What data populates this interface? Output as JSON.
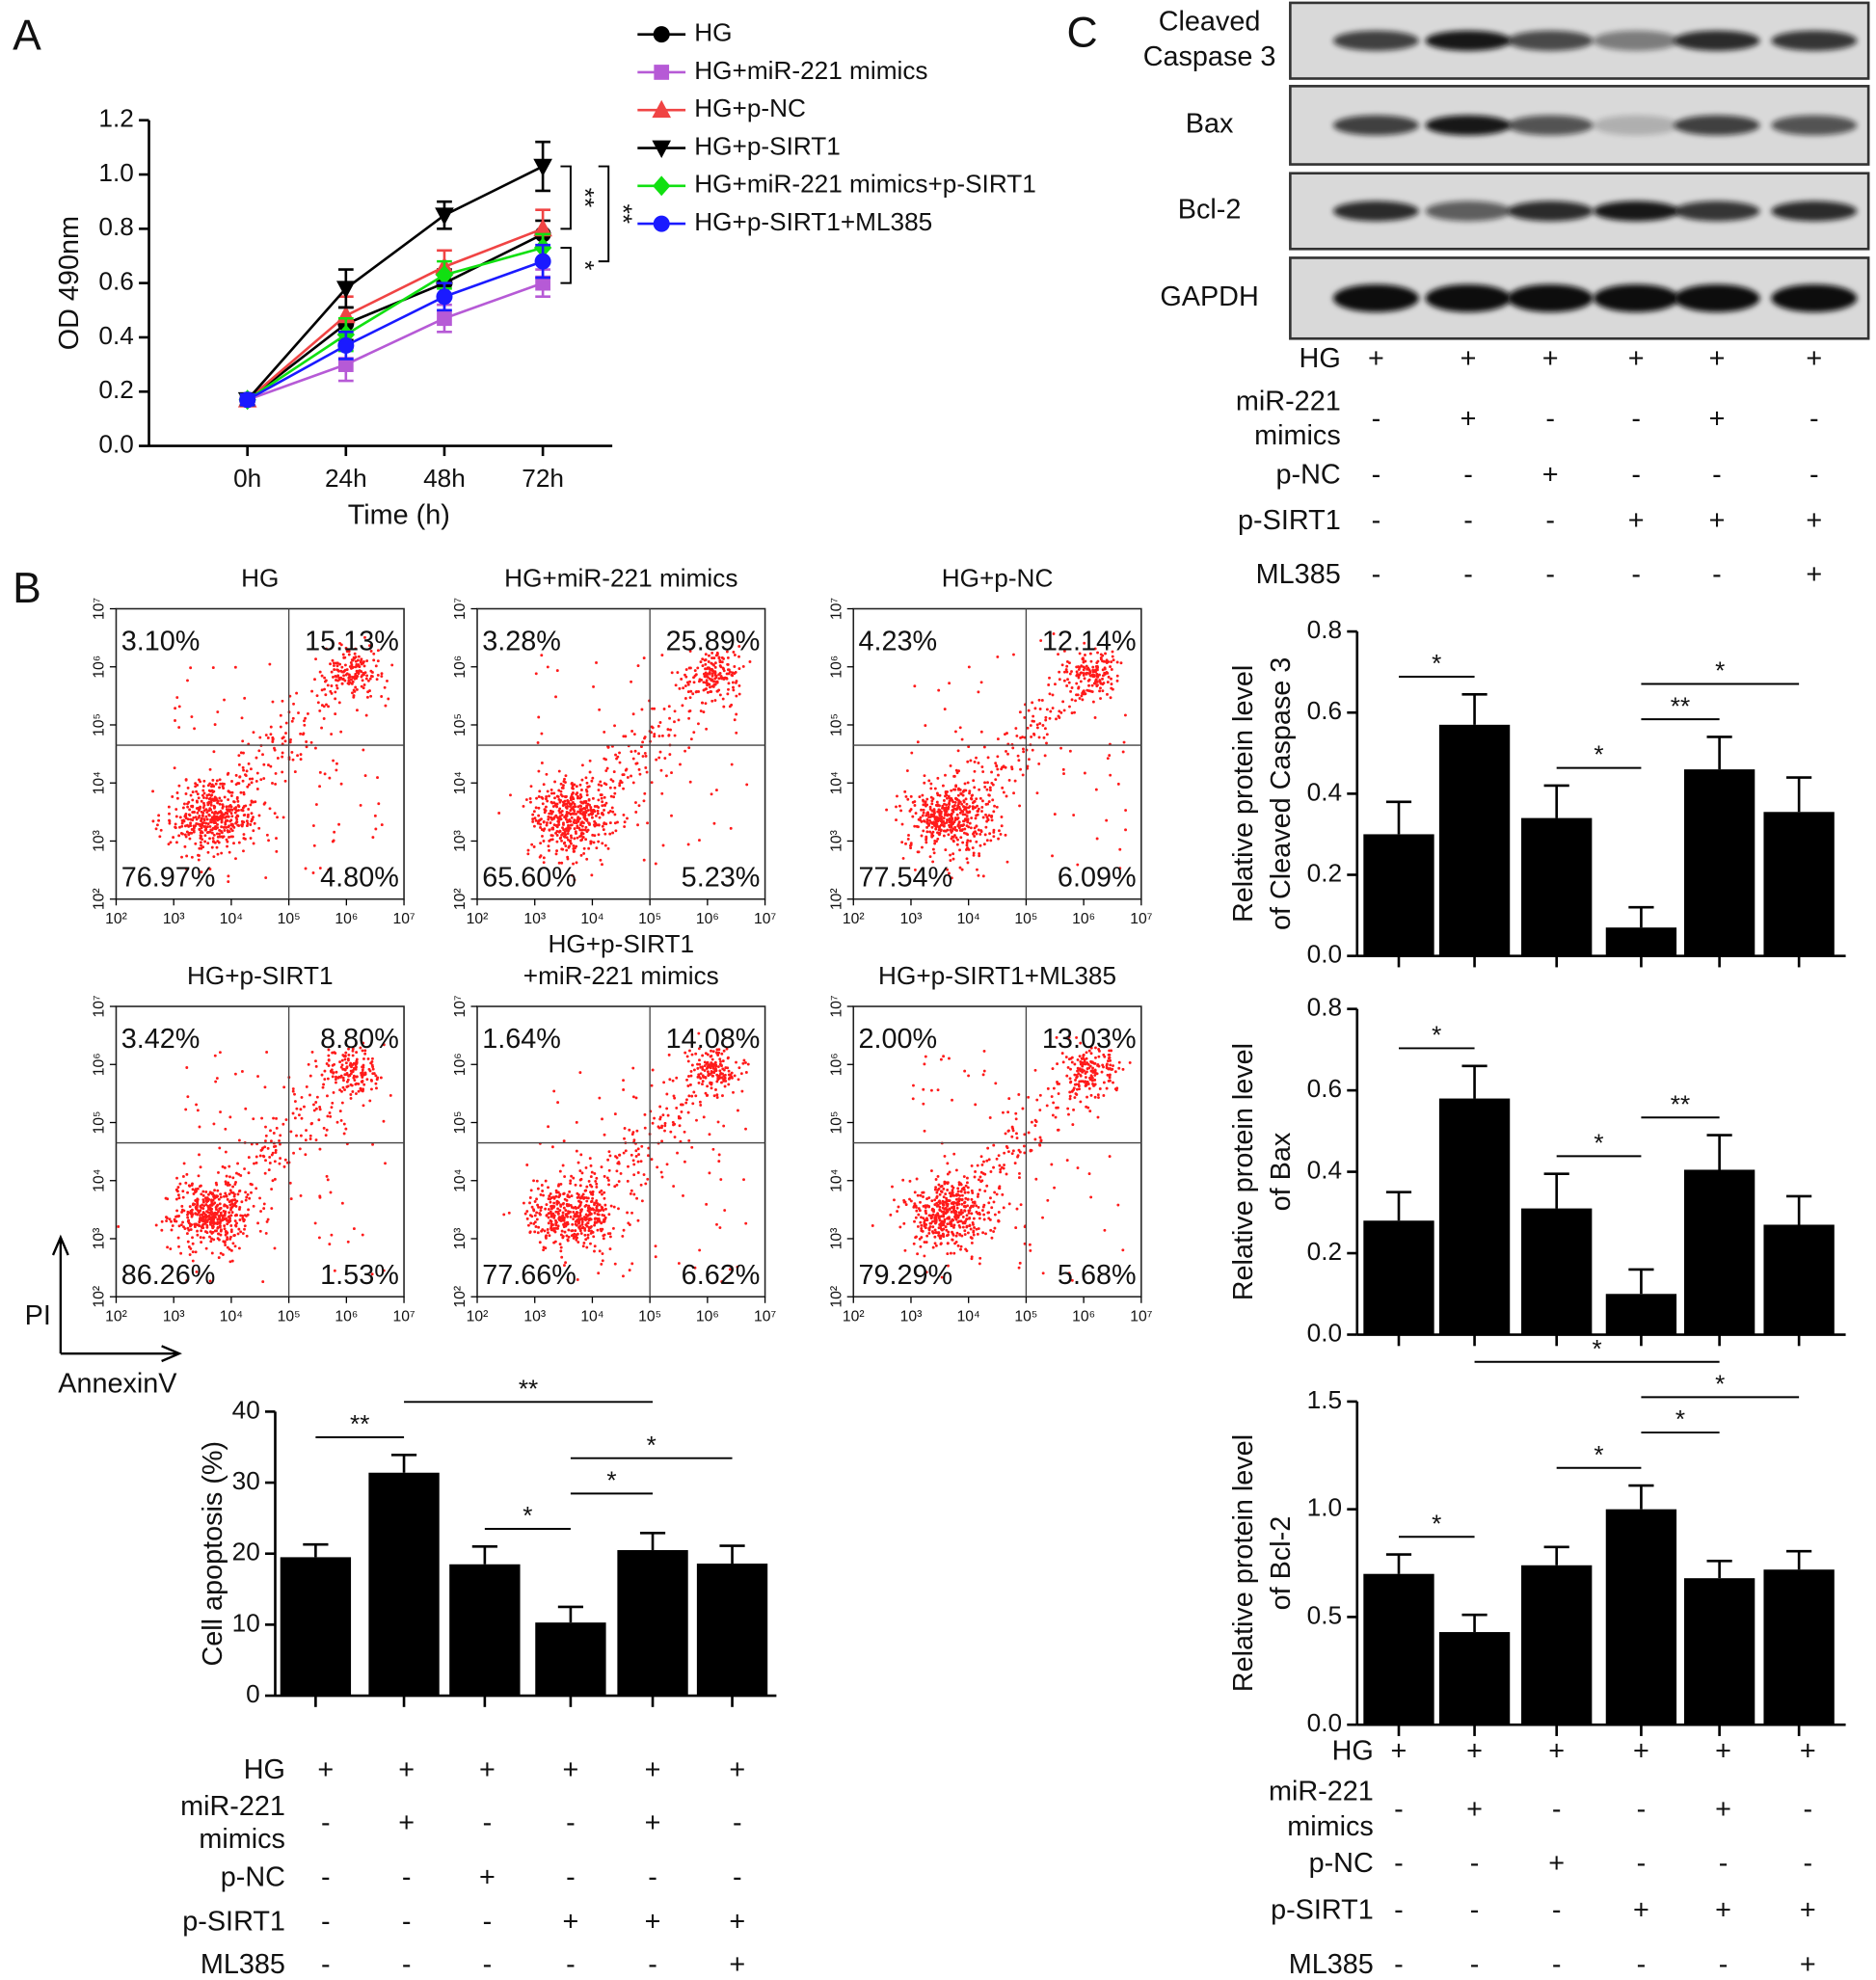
{
  "panel_labels": [
    "A",
    "B",
    "C"
  ],
  "chart_data": [
    {
      "type": "line",
      "x_label": "Time (h)",
      "y_label": "OD 490nm",
      "categories": [
        "0h",
        "24h",
        "48h",
        "72h"
      ],
      "ylim": [
        0,
        1.2
      ],
      "yticks": [
        {
          "value": 0,
          "label": "0.0"
        },
        {
          "value": 0.2,
          "label": "0.2"
        },
        {
          "value": 0.4,
          "label": "0.4"
        },
        {
          "value": 0.6,
          "label": "0.6"
        },
        {
          "value": 0.8,
          "label": "0.8"
        },
        {
          "value": 1,
          "label": "1.0"
        },
        {
          "value": 1.2,
          "label": "1.2"
        }
      ],
      "series": [
        {
          "name": "HG",
          "color": "#000000",
          "marker": "circle",
          "values": [
            0.17,
            0.45,
            0.6,
            0.78
          ],
          "errors": [
            0.02,
            0.06,
            0.05,
            0.05
          ]
        },
        {
          "name": "HG+miR-221 mimics",
          "color": "#b65ad6",
          "marker": "square",
          "values": [
            0.17,
            0.3,
            0.47,
            0.6
          ],
          "errors": [
            0.02,
            0.06,
            0.05,
            0.05
          ]
        },
        {
          "name": "HG+p-NC",
          "color": "#f04444",
          "marker": "triangle",
          "values": [
            0.17,
            0.48,
            0.66,
            0.8
          ],
          "errors": [
            0.02,
            0.07,
            0.06,
            0.07
          ]
        },
        {
          "name": "HG+p-SIRT1",
          "color": "#000000",
          "marker": "triangle-down",
          "values": [
            0.17,
            0.58,
            0.85,
            1.03
          ],
          "errors": [
            0.02,
            0.07,
            0.05,
            0.09
          ]
        },
        {
          "name": "HG+miR-221 mimics+p-SIRT1",
          "color": "#11e011",
          "marker": "diamond",
          "values": [
            0.17,
            0.41,
            0.63,
            0.73
          ],
          "errors": [
            0.02,
            0.06,
            0.05,
            0.05
          ]
        },
        {
          "name": "HG+p-SIRT1+ML385",
          "color": "#1a1aff",
          "marker": "circle",
          "values": [
            0.17,
            0.37,
            0.55,
            0.68
          ],
          "errors": [
            0.02,
            0.05,
            0.05,
            0.06
          ]
        }
      ],
      "comparisons": [
        {
          "series": [
            3,
            2
          ],
          "label": "**"
        },
        {
          "series": [
            3,
            5
          ],
          "label": "**"
        },
        {
          "series": [
            4,
            1
          ],
          "label": "*"
        }
      ]
    },
    {
      "type": "flow",
      "title": [
        "HG"
      ],
      "quadrants": [
        "3.10%",
        "15.13%",
        "76.97%",
        "4.80%"
      ],
      "log": true,
      "xlim": [
        100,
        10000000
      ],
      "ylim": [
        100,
        10000000
      ],
      "xticks": [
        {
          "value": 100,
          "label": "10²"
        },
        {
          "value": 1000,
          "label": "10³"
        },
        {
          "value": 10000,
          "label": "10⁴"
        },
        {
          "value": 100000,
          "label": "10⁵"
        },
        {
          "value": 1000000,
          "label": "10⁶"
        },
        {
          "value": 10000000,
          "label": "10⁷"
        }
      ],
      "yticks": [
        {
          "value": 100,
          "label": "10²"
        },
        {
          "value": 1000,
          "label": "10³"
        },
        {
          "value": 10000,
          "label": "10⁴"
        },
        {
          "value": 100000,
          "label": "10⁵"
        },
        {
          "value": 1000000,
          "label": "10⁶"
        },
        {
          "value": 10000000,
          "label": "10⁷"
        }
      ]
    },
    {
      "type": "flow",
      "title": [
        "HG+miR-221 mimics"
      ],
      "quadrants": [
        "3.28%",
        "25.89%",
        "65.60%",
        "5.23%"
      ],
      "log": true,
      "xlim": [
        100,
        10000000
      ],
      "ylim": [
        100,
        10000000
      ],
      "xticks": [
        {
          "value": 100,
          "label": "10²"
        },
        {
          "value": 1000,
          "label": "10³"
        },
        {
          "value": 10000,
          "label": "10⁴"
        },
        {
          "value": 100000,
          "label": "10⁵"
        },
        {
          "value": 1000000,
          "label": "10⁶"
        },
        {
          "value": 10000000,
          "label": "10⁷"
        }
      ],
      "yticks": [
        {
          "value": 100,
          "label": "10²"
        },
        {
          "value": 1000,
          "label": "10³"
        },
        {
          "value": 10000,
          "label": "10⁴"
        },
        {
          "value": 100000,
          "label": "10⁵"
        },
        {
          "value": 1000000,
          "label": "10⁶"
        },
        {
          "value": 10000000,
          "label": "10⁷"
        }
      ]
    },
    {
      "type": "flow",
      "title": [
        "HG+p-NC"
      ],
      "quadrants": [
        "4.23%",
        "12.14%",
        "77.54%",
        "6.09%"
      ],
      "log": true,
      "xlim": [
        100,
        10000000
      ],
      "ylim": [
        100,
        10000000
      ],
      "xticks": [
        {
          "value": 100,
          "label": "10²"
        },
        {
          "value": 1000,
          "label": "10³"
        },
        {
          "value": 10000,
          "label": "10⁴"
        },
        {
          "value": 100000,
          "label": "10⁵"
        },
        {
          "value": 1000000,
          "label": "10⁶"
        },
        {
          "value": 10000000,
          "label": "10⁷"
        }
      ],
      "yticks": [
        {
          "value": 100,
          "label": "10²"
        },
        {
          "value": 1000,
          "label": "10³"
        },
        {
          "value": 10000,
          "label": "10⁴"
        },
        {
          "value": 100000,
          "label": "10⁵"
        },
        {
          "value": 1000000,
          "label": "10⁶"
        },
        {
          "value": 10000000,
          "label": "10⁷"
        }
      ]
    },
    {
      "type": "flow",
      "title": [
        "HG+p-SIRT1"
      ],
      "quadrants": [
        "3.42%",
        "8.80%",
        "86.26%",
        "1.53%"
      ],
      "log": true,
      "xlim": [
        100,
        10000000
      ],
      "ylim": [
        100,
        10000000
      ],
      "xticks": [
        {
          "value": 100,
          "label": "10²"
        },
        {
          "value": 1000,
          "label": "10³"
        },
        {
          "value": 10000,
          "label": "10⁴"
        },
        {
          "value": 100000,
          "label": "10⁵"
        },
        {
          "value": 1000000,
          "label": "10⁶"
        },
        {
          "value": 10000000,
          "label": "10⁷"
        }
      ],
      "yticks": [
        {
          "value": 100,
          "label": "10²"
        },
        {
          "value": 1000,
          "label": "10³"
        },
        {
          "value": 10000,
          "label": "10⁴"
        },
        {
          "value": 100000,
          "label": "10⁵"
        },
        {
          "value": 1000000,
          "label": "10⁶"
        },
        {
          "value": 10000000,
          "label": "10⁷"
        }
      ]
    },
    {
      "type": "flow",
      "title": [
        "HG+p-SIRT1",
        "+miR-221 mimics"
      ],
      "quadrants": [
        "1.64%",
        "14.08%",
        "77.66%",
        "6.62%"
      ],
      "log": true,
      "xlim": [
        100,
        10000000
      ],
      "ylim": [
        100,
        10000000
      ],
      "xticks": [
        {
          "value": 100,
          "label": "10²"
        },
        {
          "value": 1000,
          "label": "10³"
        },
        {
          "value": 10000,
          "label": "10⁴"
        },
        {
          "value": 100000,
          "label": "10⁵"
        },
        {
          "value": 1000000,
          "label": "10⁶"
        },
        {
          "value": 10000000,
          "label": "10⁷"
        }
      ],
      "yticks": [
        {
          "value": 100,
          "label": "10²"
        },
        {
          "value": 1000,
          "label": "10³"
        },
        {
          "value": 10000,
          "label": "10⁴"
        },
        {
          "value": 100000,
          "label": "10⁵"
        },
        {
          "value": 1000000,
          "label": "10⁶"
        },
        {
          "value": 10000000,
          "label": "10⁷"
        }
      ]
    },
    {
      "type": "flow",
      "title": [
        "HG+p-SIRT1+ML385"
      ],
      "quadrants": [
        "2.00%",
        "13.03%",
        "79.29%",
        "5.68%"
      ],
      "log": true,
      "xlim": [
        100,
        10000000
      ],
      "ylim": [
        100,
        10000000
      ],
      "xticks": [
        {
          "value": 100,
          "label": "10²"
        },
        {
          "value": 1000,
          "label": "10³"
        },
        {
          "value": 10000,
          "label": "10⁴"
        },
        {
          "value": 100000,
          "label": "10⁵"
        },
        {
          "value": 1000000,
          "label": "10⁶"
        },
        {
          "value": 10000000,
          "label": "10⁷"
        }
      ],
      "yticks": [
        {
          "value": 100,
          "label": "10²"
        },
        {
          "value": 1000,
          "label": "10³"
        },
        {
          "value": 10000,
          "label": "10⁴"
        },
        {
          "value": 100000,
          "label": "10⁵"
        },
        {
          "value": 1000000,
          "label": "10⁶"
        },
        {
          "value": 10000000,
          "label": "10⁷"
        }
      ]
    },
    {
      "type": "bar",
      "y_label": [
        "Cell apoptosis (%)"
      ],
      "color": "#000000",
      "values": [
        19.5,
        31.4,
        18.5,
        10.3,
        20.5,
        18.6
      ],
      "errors": [
        1.8,
        2.5,
        2.5,
        2.2,
        2.4,
        2.5
      ],
      "ylim": [
        0,
        40
      ],
      "yticks": [
        0,
        10,
        20,
        30,
        40
      ],
      "comparisons": [
        {
          "bars": [
            0,
            1
          ],
          "label": "**"
        },
        {
          "bars": [
            2,
            3
          ],
          "label": "*"
        },
        {
          "bars": [
            3,
            4
          ],
          "label": "*"
        },
        {
          "bars": [
            3,
            5
          ],
          "label": "*"
        },
        {
          "bars": [
            1,
            4
          ],
          "label": "**"
        }
      ]
    },
    {
      "type": "bar",
      "y_label": [
        "Relative protein level",
        "of Cleaved Caspase 3"
      ],
      "color": "#000000",
      "values": [
        0.3,
        0.57,
        0.34,
        0.07,
        0.46,
        0.355
      ],
      "errors": [
        0.08,
        0.075,
        0.08,
        0.05,
        0.08,
        0.085
      ],
      "ylim": [
        0,
        0.8
      ],
      "yticks": [
        {
          "value": 0,
          "label": "0.0"
        },
        {
          "value": 0.2,
          "label": "0.2"
        },
        {
          "value": 0.4,
          "label": "0.4"
        },
        {
          "value": 0.6,
          "label": "0.6"
        },
        {
          "value": 0.8,
          "label": "0.8"
        }
      ],
      "comparisons": [
        {
          "bars": [
            0,
            1
          ],
          "label": "*"
        },
        {
          "bars": [
            2,
            3
          ],
          "label": "*"
        },
        {
          "bars": [
            3,
            4
          ],
          "label": "**"
        },
        {
          "bars": [
            3,
            5
          ],
          "label": "*"
        }
      ]
    },
    {
      "type": "bar",
      "y_label": [
        "Relative protein level",
        "of Bax"
      ],
      "color": "#000000",
      "values": [
        0.28,
        0.58,
        0.31,
        0.1,
        0.405,
        0.27
      ],
      "errors": [
        0.07,
        0.08,
        0.085,
        0.06,
        0.085,
        0.07
      ],
      "ylim": [
        0,
        0.8
      ],
      "yticks": [
        {
          "value": 0,
          "label": "0.0"
        },
        {
          "value": 0.2,
          "label": "0.2"
        },
        {
          "value": 0.4,
          "label": "0.4"
        },
        {
          "value": 0.6,
          "label": "0.6"
        },
        {
          "value": 0.8,
          "label": "0.8"
        }
      ],
      "comparisons": [
        {
          "bars": [
            0,
            1
          ],
          "label": "*"
        },
        {
          "bars": [
            2,
            3
          ],
          "label": "*"
        },
        {
          "bars": [
            3,
            4
          ],
          "label": "**"
        }
      ]
    },
    {
      "type": "bar",
      "y_label": [
        "Relative protein level",
        "of Bcl-2"
      ],
      "color": "#000000",
      "values": [
        0.7,
        0.43,
        0.74,
        1.0,
        0.68,
        0.72
      ],
      "errors": [
        0.09,
        0.08,
        0.085,
        0.11,
        0.08,
        0.085
      ],
      "ylim": [
        0,
        1.5
      ],
      "yticks": [
        {
          "value": 0,
          "label": "0.0"
        },
        {
          "value": 0.5,
          "label": "0.5"
        },
        {
          "value": 1,
          "label": "1.0"
        },
        {
          "value": 1.5,
          "label": "1.5"
        }
      ],
      "comparisons": [
        {
          "bars": [
            0,
            1
          ],
          "label": "*"
        },
        {
          "bars": [
            2,
            3
          ],
          "label": "*"
        },
        {
          "bars": [
            3,
            4
          ],
          "label": "*"
        },
        {
          "bars": [
            3,
            5
          ],
          "label": "*"
        },
        {
          "bars": [
            1,
            4
          ],
          "label": "*"
        }
      ]
    }
  ],
  "flow_axes": {
    "y_label": "PI",
    "x_label": "AnnexinV"
  },
  "blots": [
    {
      "label": [
        "Cleaved",
        "Caspase 3"
      ]
    },
    {
      "label": [
        "Bax"
      ]
    },
    {
      "label": [
        "Bcl-2"
      ]
    },
    {
      "label": [
        "GAPDH"
      ]
    }
  ],
  "treatment_tables": [
    {
      "rows": [
        {
          "label": [
            "HG"
          ],
          "signs": [
            "+",
            "+",
            "+",
            "+",
            "+",
            "+"
          ]
        },
        {
          "label": [
            "miR-221",
            "mimics"
          ],
          "signs": [
            "-",
            "+",
            "-",
            "-",
            "+",
            "-"
          ]
        },
        {
          "label": [
            "p-NC"
          ],
          "signs": [
            "-",
            "-",
            "+",
            "-",
            "-",
            "-"
          ]
        },
        {
          "label": [
            "p-SIRT1"
          ],
          "signs": [
            "-",
            "-",
            "-",
            "+",
            "+",
            "+"
          ]
        },
        {
          "label": [
            "ML385"
          ],
          "signs": [
            "-",
            "-",
            "-",
            "-",
            "-",
            "+"
          ]
        }
      ]
    },
    {
      "rows": [
        {
          "label": [
            "HG"
          ],
          "signs": [
            "+",
            "+",
            "+",
            "+",
            "+",
            "+"
          ]
        },
        {
          "label": [
            "miR-221",
            "mimics"
          ],
          "signs": [
            "-",
            "+",
            "-",
            "-",
            "+",
            "-"
          ]
        },
        {
          "label": [
            "p-NC"
          ],
          "signs": [
            "-",
            "-",
            "+",
            "-",
            "-",
            "-"
          ]
        },
        {
          "label": [
            "p-SIRT1"
          ],
          "signs": [
            "-",
            "-",
            "-",
            "+",
            "+",
            "+"
          ]
        },
        {
          "label": [
            "ML385"
          ],
          "signs": [
            "-",
            "-",
            "-",
            "-",
            "-",
            "+"
          ]
        }
      ]
    },
    {
      "rows": [
        {
          "label": [
            "HG"
          ],
          "signs": [
            "+",
            "+",
            "+",
            "+",
            "+",
            "+"
          ]
        },
        {
          "label": [
            "miR-221",
            "mimics"
          ],
          "signs": [
            "-",
            "+",
            "-",
            "-",
            "+",
            "-"
          ]
        },
        {
          "label": [
            "p-NC"
          ],
          "signs": [
            "-",
            "-",
            "+",
            "-",
            "-",
            "-"
          ]
        },
        {
          "label": [
            "p-SIRT1"
          ],
          "signs": [
            "-",
            "-",
            "-",
            "+",
            "+",
            "+"
          ]
        },
        {
          "label": [
            "ML385"
          ],
          "signs": [
            "-",
            "-",
            "-",
            "-",
            "-",
            "+"
          ]
        }
      ]
    }
  ]
}
